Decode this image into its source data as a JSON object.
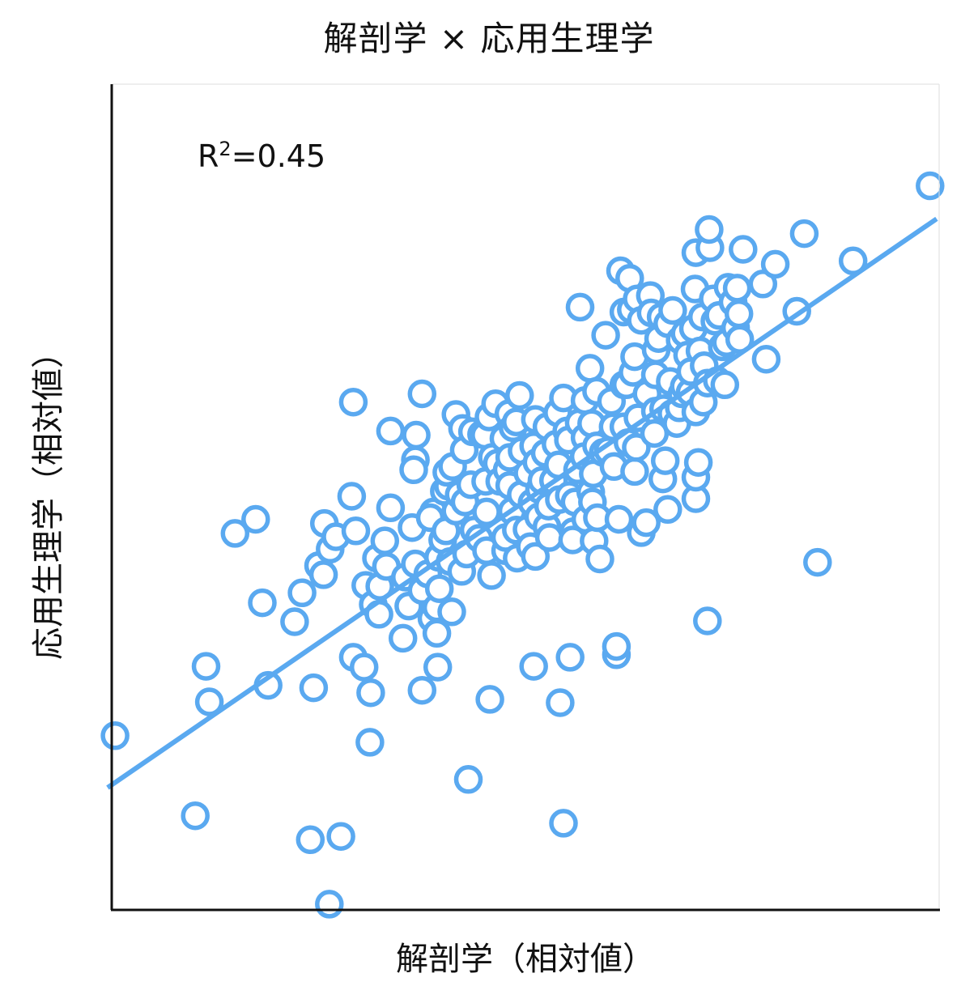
{
  "chart_data": {
    "type": "scatter",
    "title": "解剖学 × 応用生理学",
    "xlabel": "解剖学（相対値）",
    "ylabel": "応用生理学（相対値）",
    "annotation": {
      "text_prefix": "R",
      "superscript": "2",
      "text_suffix": "=0.45"
    },
    "xlim": [
      0,
      100
    ],
    "ylim": [
      0,
      100
    ],
    "grid": false,
    "color": "#5aa9f0",
    "trendline": {
      "x": [
        -0.5,
        99.7
      ],
      "y": [
        14.8,
        83.7
      ]
    },
    "points": [
      [
        0.4,
        21.1
      ],
      [
        10.1,
        11.4
      ],
      [
        11.4,
        29.5
      ],
      [
        11.8,
        25.2
      ],
      [
        14.9,
        45.6
      ],
      [
        17.4,
        47.3
      ],
      [
        18.2,
        37.2
      ],
      [
        18.9,
        27.2
      ],
      [
        22.1,
        34.9
      ],
      [
        23.0,
        38.4
      ],
      [
        24.0,
        8.5
      ],
      [
        24.4,
        26.9
      ],
      [
        25.0,
        41.7
      ],
      [
        25.6,
        40.6
      ],
      [
        25.7,
        46.8
      ],
      [
        26.4,
        43.7
      ],
      [
        26.3,
        0.7
      ],
      [
        27.1,
        45.2
      ],
      [
        27.7,
        8.9
      ],
      [
        29.2,
        30.6
      ],
      [
        29.0,
        50.1
      ],
      [
        29.2,
        61.5
      ],
      [
        29.5,
        45.9
      ],
      [
        30.5,
        29.4
      ],
      [
        31.3,
        26.3
      ],
      [
        31.2,
        20.3
      ],
      [
        30.7,
        39.3
      ],
      [
        31.6,
        37.0
      ],
      [
        32.0,
        42.6
      ],
      [
        32.4,
        39.2
      ],
      [
        32.3,
        35.8
      ],
      [
        33.0,
        44.7
      ],
      [
        33.7,
        48.7
      ],
      [
        33.2,
        41.6
      ],
      [
        33.7,
        58.0
      ],
      [
        35.2,
        32.9
      ],
      [
        35.9,
        36.8
      ],
      [
        35.5,
        40.3
      ],
      [
        36.3,
        46.3
      ],
      [
        36.7,
        41.9
      ],
      [
        36.7,
        54.5
      ],
      [
        36.8,
        57.5
      ],
      [
        37.5,
        26.6
      ],
      [
        37.5,
        38.7
      ],
      [
        36.5,
        53.3
      ],
      [
        37.5,
        62.5
      ],
      [
        38.2,
        40.7
      ],
      [
        38.9,
        48.2
      ],
      [
        38.5,
        47.5
      ],
      [
        38.7,
        35.3
      ],
      [
        39.4,
        29.4
      ],
      [
        39.3,
        33.5
      ],
      [
        39.3,
        36.6
      ],
      [
        39.5,
        42.7
      ],
      [
        39.6,
        38.9
      ],
      [
        40.0,
        44.8
      ],
      [
        40.2,
        50.7
      ],
      [
        40.4,
        45.9
      ],
      [
        40.7,
        51.3
      ],
      [
        40.5,
        53.0
      ],
      [
        40.9,
        42.2
      ],
      [
        41.1,
        36.1
      ],
      [
        41.6,
        48.3
      ],
      [
        41.6,
        60.0
      ],
      [
        41.2,
        53.7
      ],
      [
        42.4,
        58.3
      ],
      [
        42.0,
        50.3
      ],
      [
        42.3,
        41.0
      ],
      [
        42.9,
        43.1
      ],
      [
        42.7,
        49.4
      ],
      [
        42.6,
        55.7
      ],
      [
        43.1,
        15.8
      ],
      [
        43.6,
        57.9
      ],
      [
        43.4,
        51.5
      ],
      [
        43.8,
        46.0
      ],
      [
        44.4,
        45.0
      ],
      [
        44.7,
        57.6
      ],
      [
        45.3,
        43.5
      ],
      [
        45.2,
        51.9
      ],
      [
        45.1,
        57.5
      ],
      [
        45.7,
        25.5
      ],
      [
        45.3,
        48.2
      ],
      [
        45.9,
        40.5
      ],
      [
        45.6,
        59.7
      ],
      [
        46.0,
        54.8
      ],
      [
        46.4,
        61.3
      ],
      [
        46.6,
        54.1
      ],
      [
        46.9,
        51.9
      ],
      [
        47.4,
        57.1
      ],
      [
        47.6,
        43.5
      ],
      [
        47.6,
        45.1
      ],
      [
        47.8,
        53.3
      ],
      [
        48.0,
        60.1
      ],
      [
        48.1,
        54.8
      ],
      [
        48.4,
        48.3
      ],
      [
        48.1,
        51.4
      ],
      [
        48.5,
        58.4
      ],
      [
        48.9,
        46.0
      ],
      [
        49.0,
        42.6
      ],
      [
        49.5,
        50.3
      ],
      [
        49.3,
        62.3
      ],
      [
        48.9,
        59.1
      ],
      [
        49.6,
        55.6
      ],
      [
        50.2,
        46.1
      ],
      [
        50.3,
        52.9
      ],
      [
        50.6,
        44.0
      ],
      [
        50.8,
        49.3
      ],
      [
        51.0,
        56.2
      ],
      [
        51.0,
        29.5
      ],
      [
        51.2,
        42.8
      ],
      [
        51.2,
        59.4
      ],
      [
        51.4,
        54.2
      ],
      [
        51.6,
        47.6
      ],
      [
        51.7,
        50.9
      ],
      [
        52.0,
        52.0
      ],
      [
        52.4,
        55.3
      ],
      [
        52.6,
        46.4
      ],
      [
        52.6,
        58.5
      ],
      [
        52.8,
        48.9
      ],
      [
        52.9,
        45.1
      ],
      [
        53.4,
        52.0
      ],
      [
        53.7,
        56.4
      ],
      [
        53.9,
        60.2
      ],
      [
        54.1,
        49.7
      ],
      [
        54.2,
        25.1
      ],
      [
        54.0,
        53.9
      ],
      [
        54.6,
        10.5
      ],
      [
        54.6,
        62.0
      ],
      [
        55.0,
        58.0
      ],
      [
        55.2,
        56.9
      ],
      [
        55.4,
        30.6
      ],
      [
        55.3,
        50.2
      ],
      [
        55.8,
        45.8
      ],
      [
        55.7,
        44.8
      ],
      [
        56.0,
        49.4
      ],
      [
        56.3,
        53.3
      ],
      [
        56.5,
        59.0
      ],
      [
        57.2,
        57.2
      ],
      [
        56.6,
        73.0
      ],
      [
        57.2,
        61.7
      ],
      [
        57.1,
        54.9
      ],
      [
        57.3,
        47.3
      ],
      [
        57.8,
        65.6
      ],
      [
        57.9,
        50.6
      ],
      [
        58.0,
        58.9
      ],
      [
        58.2,
        52.8
      ],
      [
        58.1,
        49.4
      ],
      [
        58.6,
        56.2
      ],
      [
        58.6,
        62.8
      ],
      [
        58.3,
        44.7
      ],
      [
        58.7,
        47.5
      ],
      [
        59.0,
        42.5
      ],
      [
        59.7,
        69.6
      ],
      [
        59.4,
        55.4
      ],
      [
        60.0,
        55.6
      ],
      [
        60.6,
        58.5
      ],
      [
        60.7,
        53.7
      ],
      [
        61.0,
        30.9
      ],
      [
        61.0,
        31.9
      ],
      [
        60.4,
        61.6
      ],
      [
        61.3,
        47.3
      ],
      [
        61.5,
        77.4
      ],
      [
        61.9,
        58.5
      ],
      [
        61.9,
        63.6
      ],
      [
        61.9,
        72.4
      ],
      [
        62.2,
        63.6
      ],
      [
        62.4,
        56.6
      ],
      [
        62.6,
        76.5
      ],
      [
        62.8,
        72.7
      ],
      [
        63.0,
        65.1
      ],
      [
        63.2,
        67.0
      ],
      [
        63.2,
        53.1
      ],
      [
        63.4,
        56.0
      ],
      [
        63.5,
        74.0
      ],
      [
        63.6,
        59.6
      ],
      [
        64.0,
        45.7
      ],
      [
        64.0,
        71.4
      ],
      [
        64.6,
        46.9
      ],
      [
        64.7,
        62.5
      ],
      [
        65.1,
        74.4
      ],
      [
        65.2,
        72.3
      ],
      [
        65.7,
        60.4
      ],
      [
        65.6,
        57.7
      ],
      [
        65.8,
        67.8
      ],
      [
        65.7,
        64.8
      ],
      [
        66.1,
        69.2
      ],
      [
        66.4,
        71.8
      ],
      [
        66.6,
        52.2
      ],
      [
        66.7,
        60.7
      ],
      [
        66.9,
        54.4
      ],
      [
        67.2,
        71.0
      ],
      [
        67.2,
        48.5
      ],
      [
        67.5,
        64.0
      ],
      [
        67.8,
        72.6
      ],
      [
        67.7,
        60.1
      ],
      [
        68.3,
        58.9
      ],
      [
        68.6,
        60.8
      ],
      [
        68.9,
        62.5
      ],
      [
        68.7,
        69.0
      ],
      [
        69.3,
        69.8
      ],
      [
        69.2,
        63.4
      ],
      [
        69.6,
        67.2
      ],
      [
        69.9,
        62.7
      ],
      [
        70.0,
        65.2
      ],
      [
        70.3,
        70.4
      ],
      [
        70.5,
        75.2
      ],
      [
        70.6,
        60.3
      ],
      [
        70.6,
        79.6
      ],
      [
        70.6,
        49.8
      ],
      [
        70.6,
        52.4
      ],
      [
        70.9,
        54.2
      ],
      [
        71.1,
        67.7
      ],
      [
        71.5,
        61.5
      ],
      [
        71.4,
        71.8
      ],
      [
        71.6,
        65.9
      ],
      [
        72.0,
        35.0
      ],
      [
        72.0,
        63.8
      ],
      [
        72.3,
        80.2
      ],
      [
        72.2,
        82.4
      ],
      [
        72.7,
        74.0
      ],
      [
        72.9,
        71.3
      ],
      [
        73.2,
        64.1
      ],
      [
        73.4,
        72.0
      ],
      [
        73.8,
        68.2
      ],
      [
        74.1,
        63.6
      ],
      [
        74.3,
        68.7
      ],
      [
        74.5,
        75.4
      ],
      [
        75.1,
        73.6
      ],
      [
        75.4,
        70.5
      ],
      [
        75.8,
        72.2
      ],
      [
        75.6,
        75.3
      ],
      [
        75.9,
        69.1
      ],
      [
        76.3,
        80.0
      ],
      [
        78.7,
        75.8
      ],
      [
        79.1,
        66.7
      ],
      [
        80.2,
        78.2
      ],
      [
        82.8,
        72.5
      ],
      [
        83.7,
        81.9
      ],
      [
        85.3,
        42.1
      ],
      [
        89.6,
        78.6
      ],
      [
        98.9,
        87.7
      ]
    ]
  }
}
